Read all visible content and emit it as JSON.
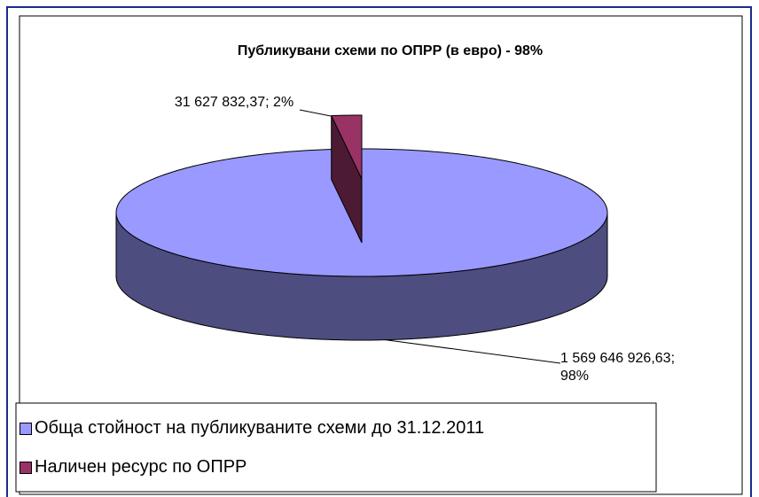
{
  "chart_data": {
    "type": "pie3d",
    "title": "Публикувани схеми по ОПРР (в евро) - 98%",
    "categories": [
      "Обща стойност на публикуваните схеми до 31.12.2011",
      "Наличен ресурс по ОПРР"
    ],
    "values": [
      1569646926.63,
      31627832.37
    ],
    "value_labels": [
      "1 569 646 926,63; 98%",
      "31 627 832,37; 2%"
    ],
    "colors": [
      "#9999ff",
      "#993366"
    ],
    "legend": "bottom"
  }
}
